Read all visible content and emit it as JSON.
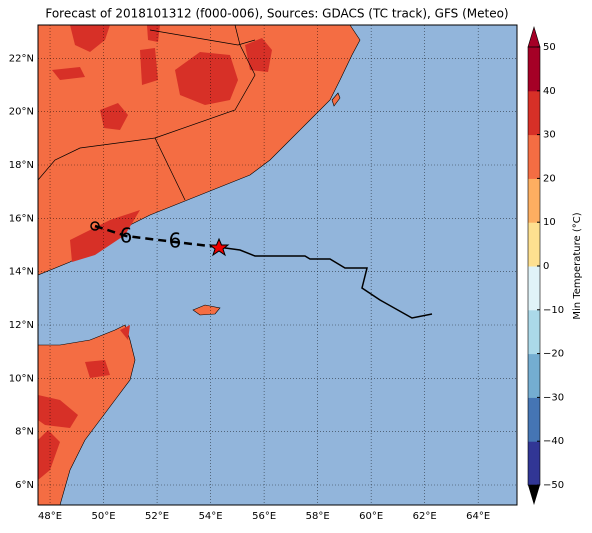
{
  "chart_data": {
    "type": "map",
    "title": "Forecast of 2018101312 (f000-006), Sources: GDACS (TC track), GFS (Meteo)",
    "xlim": [
      47.55,
      65.45
    ],
    "ylim": [
      5.25,
      23.25
    ],
    "xticks": [
      {
        "value": 48,
        "label": "48°E"
      },
      {
        "value": 50,
        "label": "50°E"
      },
      {
        "value": 52,
        "label": "52°E"
      },
      {
        "value": 54,
        "label": "54°E"
      },
      {
        "value": 56,
        "label": "56°E"
      },
      {
        "value": 58,
        "label": "58°E"
      },
      {
        "value": 60,
        "label": "60°E"
      },
      {
        "value": 62,
        "label": "62°E"
      },
      {
        "value": 64,
        "label": "64°E"
      }
    ],
    "yticks": [
      {
        "value": 6,
        "label": "6°N"
      },
      {
        "value": 8,
        "label": "8°N"
      },
      {
        "value": 10,
        "label": "10°N"
      },
      {
        "value": 12,
        "label": "12°N"
      },
      {
        "value": 14,
        "label": "14°N"
      },
      {
        "value": 16,
        "label": "16°N"
      },
      {
        "value": 18,
        "label": "18°N"
      },
      {
        "value": 20,
        "label": "20°N"
      },
      {
        "value": 22,
        "label": "22°N"
      }
    ],
    "grid": true,
    "colorbar": {
      "label": "Min Temperature (°C)",
      "lim": [
        -50,
        50
      ],
      "ticks": [
        {
          "value": -50,
          "label": "−50"
        },
        {
          "value": -40,
          "label": "−40"
        },
        {
          "value": -30,
          "label": "−30"
        },
        {
          "value": -20,
          "label": "−20"
        },
        {
          "value": -10,
          "label": "−10"
        },
        0,
        10,
        20,
        30,
        40,
        50
      ],
      "colors": [
        "#313695",
        "#4575b4",
        "#74add1",
        "#abd9e9",
        "#e0f3f8",
        "#fee090",
        "#fdae61",
        "#f46d43",
        "#d73027",
        "#a50026"
      ]
    }
  }
}
